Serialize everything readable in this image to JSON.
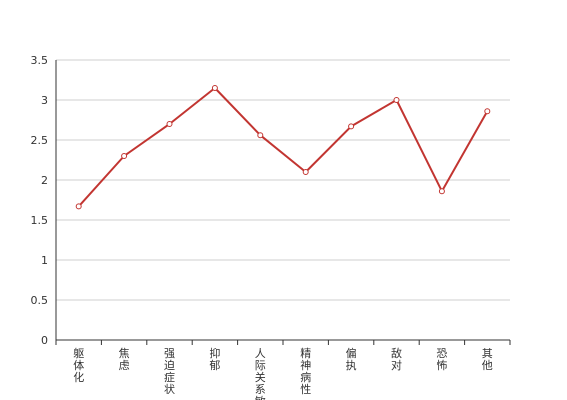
{
  "chart_data": {
    "type": "line",
    "categories": [
      "躯体化",
      "焦虑",
      "强迫症状",
      "抑郁",
      "人际关系敏感",
      "精神病性",
      "偏执",
      "敌对",
      "恐怖",
      "其他"
    ],
    "series": [
      {
        "values": [
          1.67,
          2.3,
          2.7,
          3.15,
          2.56,
          2.1,
          2.67,
          3.0,
          1.86,
          2.86
        ]
      }
    ],
    "y_ticks": [
      "0",
      "0.5",
      "1",
      "1.5",
      "2",
      "2.5",
      "3",
      "3.5"
    ],
    "ylim": [
      0,
      3.5
    ],
    "grid": true,
    "colors": {
      "line": "#c23531",
      "axis": "#333333",
      "grid": "#cfcfcf"
    }
  }
}
